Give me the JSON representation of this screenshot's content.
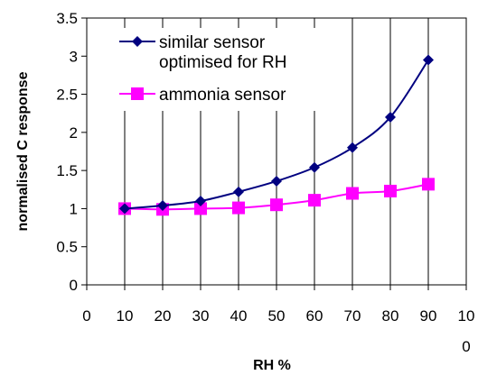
{
  "chart_data": {
    "type": "line",
    "x": [
      10,
      20,
      30,
      40,
      50,
      60,
      70,
      80,
      90
    ],
    "xlabel": "RH %",
    "ylabel": "normalised C response",
    "xlim": [
      0,
      100
    ],
    "ylim": [
      0,
      3.5
    ],
    "x_ticks": [
      "0",
      "10",
      "20",
      "30",
      "40",
      "50",
      "60",
      "70",
      "80",
      "90",
      "10"
    ],
    "x_tick_wrap": "0",
    "y_ticks": [
      "0",
      "0.5",
      "1",
      "1.5",
      "2",
      "2.5",
      "3",
      "3.5"
    ],
    "grid": "vertical",
    "legend_position": "top-left",
    "series": [
      {
        "name_lines": [
          "similar sensor",
          "optimised for RH"
        ],
        "marker": "diamond",
        "color": "#000080",
        "values": [
          1.0,
          1.04,
          1.1,
          1.22,
          1.36,
          1.54,
          1.8,
          2.2,
          2.95
        ]
      },
      {
        "name_lines": [
          "ammonia sensor"
        ],
        "marker": "square",
        "color": "#ff00ff",
        "values": [
          1.0,
          0.99,
          1.0,
          1.01,
          1.05,
          1.11,
          1.2,
          1.23,
          1.32
        ]
      }
    ]
  }
}
